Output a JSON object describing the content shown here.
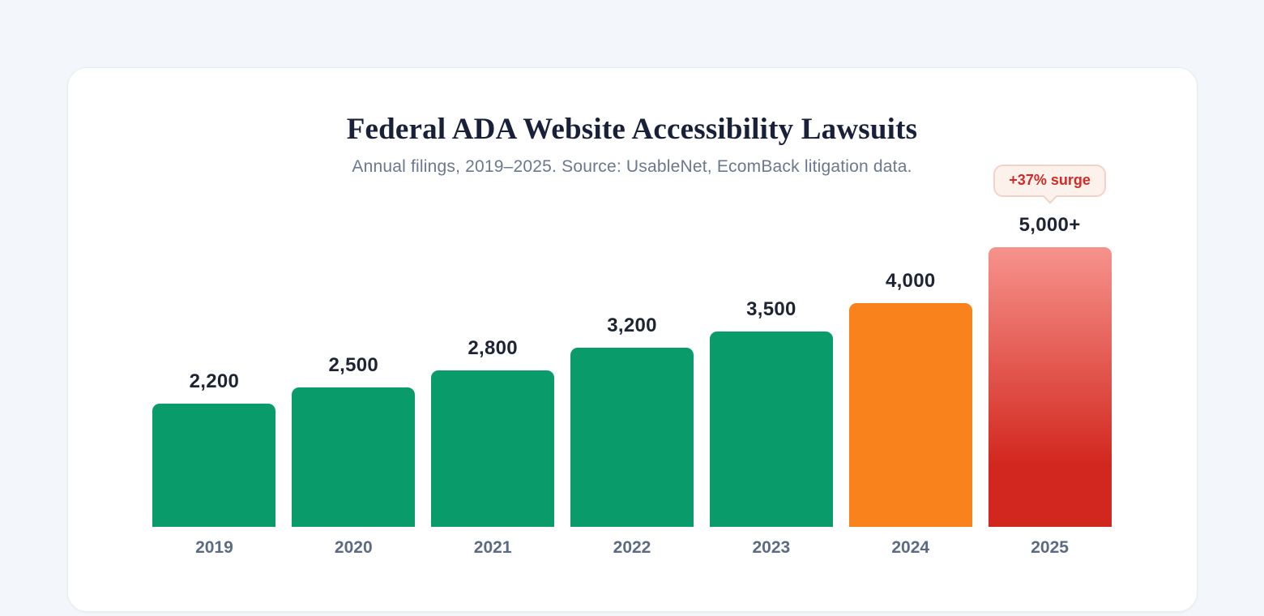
{
  "page": {
    "title": "Federal ADA Website Accessibility Lawsuits",
    "subtitle": "Annual filings, 2019–2025. Source: UsableNet, EcomBack litigation data."
  },
  "chart_data": {
    "type": "bar",
    "title": "Federal ADA Website Accessibility Lawsuits",
    "subtitle": "Annual filings, 2019–2025. Source: UsableNet, EcomBack litigation data.",
    "categories": [
      "2019",
      "2020",
      "2021",
      "2022",
      "2023",
      "2024",
      "2025"
    ],
    "values": [
      2200,
      2500,
      2800,
      3200,
      3500,
      4000,
      5000
    ],
    "value_labels": [
      "2,200",
      "2,500",
      "2,800",
      "3,200",
      "3,500",
      "4,000",
      "5,000+"
    ],
    "ylim": [
      0,
      5000
    ],
    "grid": "off",
    "legend": "none",
    "annotation": {
      "text": "+37% surge",
      "target": "2025"
    },
    "bar_color_keys": [
      "green",
      "green",
      "green",
      "green",
      "green",
      "orange",
      "red_gradient"
    ]
  },
  "colors": {
    "page_bg": "#f3f6fa",
    "card_bg": "#ffffff",
    "card_border": "#e7ebf2",
    "title_text": "#19213a",
    "subtitle_text": "#6b7890",
    "value_text": "#1d2434",
    "year_text": "#5c6b84",
    "green": "#0a9b6a",
    "orange": "#f9821c",
    "red_gradient_top": "#f6938c",
    "red_gradient_bottom": "#d2271e",
    "badge_bg": "#fdf1ec",
    "badge_border": "#f5d2c8",
    "badge_text": "#d22b25"
  }
}
